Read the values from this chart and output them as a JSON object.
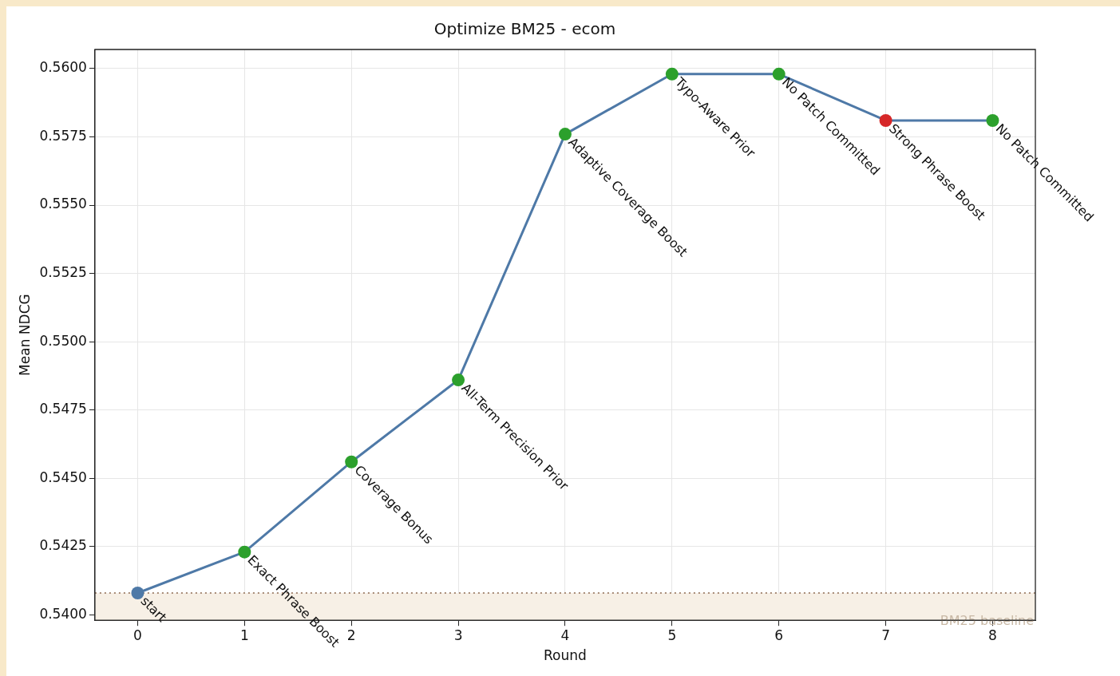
{
  "chart_data": {
    "type": "line",
    "title": "Optimize BM25 - ecom",
    "xlabel": "Round",
    "ylabel": "Mean NDCG",
    "x": [
      0,
      1,
      2,
      3,
      4,
      5,
      6,
      7,
      8
    ],
    "series": [
      {
        "color": "#4e79a7",
        "colors": [
          "#4e79a7",
          "#2ca02c",
          "#2ca02c",
          "#2ca02c",
          "#2ca02c",
          "#2ca02c",
          "#2ca02c",
          "#d62728",
          "#2ca02c"
        ],
        "values": [
          0.5408,
          0.5423,
          0.5456,
          0.5486,
          0.5576,
          0.5598,
          0.5598,
          0.5581,
          0.5581
        ]
      }
    ],
    "xlim": [
      -0.4,
      8.4
    ],
    "xticks": [
      0,
      1,
      2,
      3,
      4,
      5,
      6,
      7,
      8
    ],
    "ylim": [
      0.5398,
      0.5607
    ],
    "yticks": [
      {
        "value": 0.54,
        "label": "0.5400"
      },
      {
        "value": 0.5425,
        "label": "0.5425"
      },
      {
        "value": 0.545,
        "label": "0.5450"
      },
      {
        "value": 0.5475,
        "label": "0.5475"
      },
      {
        "value": 0.55,
        "label": "0.5500"
      },
      {
        "value": 0.5525,
        "label": "0.5525"
      },
      {
        "value": 0.555,
        "label": "0.5550"
      },
      {
        "value": 0.5575,
        "label": "0.5575"
      },
      {
        "value": 0.56,
        "label": "0.5600"
      }
    ],
    "grid": true,
    "legend": false,
    "marker": "circle",
    "line_style": "solid",
    "ref_lines": [
      {
        "axis": "y",
        "value": 0.5408,
        "color": "#a68a76",
        "line_style": "dotted"
      }
    ],
    "bands": [
      {
        "axis": "y",
        "from": 0.5398,
        "to": 0.5408,
        "label": "BM25 baseline",
        "color": "#f7f0e6"
      }
    ],
    "annotations": [
      {
        "text": "start",
        "x": 0,
        "y": 0.5408
      },
      {
        "text": "Exact Phrase Boost",
        "x": 1,
        "y": 0.5423
      },
      {
        "text": "Coverage Bonus",
        "x": 2,
        "y": 0.5456
      },
      {
        "text": "All-Term Precision Prior",
        "x": 3,
        "y": 0.5486
      },
      {
        "text": "Adaptive Coverage Boost",
        "x": 4,
        "y": 0.5576
      },
      {
        "text": "Typo-Aware Prior",
        "x": 5,
        "y": 0.5598
      },
      {
        "text": "No Patch Committed",
        "x": 6,
        "y": 0.5598
      },
      {
        "text": "Strong Phrase Boost",
        "x": 7,
        "y": 0.5581
      },
      {
        "text": "No Patch Committed",
        "x": 8,
        "y": 0.5581
      }
    ]
  }
}
